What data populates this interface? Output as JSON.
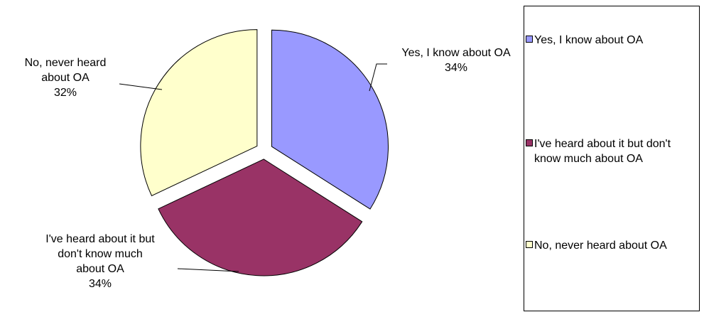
{
  "chart_data": {
    "type": "pie",
    "title": "",
    "slices": [
      {
        "label": "Yes, I know about OA",
        "value": 34,
        "value_text": "34%",
        "color": "#9999FF",
        "exploded": true
      },
      {
        "label": "I've heard about it but don't know much about OA",
        "value": 34,
        "value_text": "34%",
        "color": "#993366",
        "exploded": true
      },
      {
        "label": "No, never heard about OA",
        "value": 32,
        "value_text": "32%",
        "color": "#FFFFCC",
        "exploded": true
      }
    ],
    "data_labels": {
      "yes": {
        "line1": "Yes, I know about OA",
        "pct": "34%"
      },
      "heard": {
        "line1": "I've heard about it but",
        "line2": "don't know much",
        "line3": "about OA",
        "pct": "34%"
      },
      "never": {
        "line1": "No, never heard",
        "line2": "about OA",
        "pct": "32%"
      }
    },
    "legend": {
      "position": "right",
      "entries": [
        "Yes, I know about OA",
        "I've heard about it but don't know much about OA",
        "No, never heard about OA"
      ]
    }
  }
}
